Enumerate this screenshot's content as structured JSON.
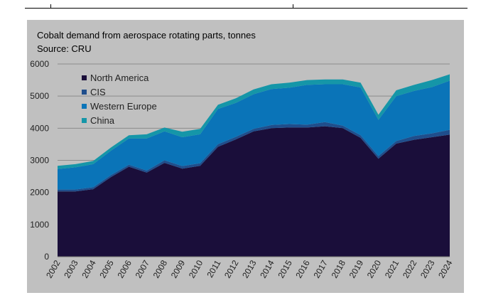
{
  "chart_data": {
    "type": "area",
    "stacked": true,
    "title": "Cobalt demand from aerospace rotating parts, tonnes",
    "subtitle": "Source: CRU",
    "xlabel": "",
    "ylabel": "",
    "ylim": [
      0,
      6000
    ],
    "yticks": [
      "0",
      "1000",
      "2000",
      "3000",
      "4000",
      "5000",
      "6000"
    ],
    "grid": true,
    "legend_position": "top-left",
    "categories": [
      "2002",
      "2003",
      "2004",
      "2005",
      "2006",
      "2007",
      "2008",
      "2009",
      "2010",
      "2011",
      "2012",
      "2013",
      "2014",
      "2015",
      "2016",
      "2017",
      "2018",
      "2019",
      "2020",
      "2021",
      "2022",
      "2023",
      "2024"
    ],
    "series": [
      {
        "name": "North America",
        "color": "#1a0e3a",
        "values": [
          2030,
          2030,
          2100,
          2480,
          2800,
          2620,
          2920,
          2740,
          2830,
          3420,
          3650,
          3900,
          4000,
          4020,
          4020,
          4060,
          4000,
          3700,
          3050,
          3520,
          3640,
          3720,
          3800
        ]
      },
      {
        "name": "CIS",
        "color": "#1f4e8c",
        "values": [
          60,
          60,
          60,
          60,
          60,
          60,
          80,
          80,
          80,
          80,
          80,
          80,
          100,
          110,
          90,
          130,
          80,
          80,
          80,
          80,
          120,
          120,
          150
        ]
      },
      {
        "name": "Western Europe",
        "color": "#0a74b8",
        "values": [
          640,
          690,
          720,
          760,
          820,
          1000,
          900,
          900,
          900,
          1100,
          1060,
          1080,
          1120,
          1130,
          1240,
          1180,
          1290,
          1490,
          1130,
          1400,
          1400,
          1440,
          1530
        ]
      },
      {
        "name": "China",
        "color": "#1596a8",
        "values": [
          100,
          100,
          100,
          100,
          100,
          130,
          120,
          170,
          170,
          130,
          140,
          150,
          150,
          160,
          150,
          150,
          150,
          150,
          160,
          180,
          190,
          220,
          200
        ]
      }
    ]
  }
}
